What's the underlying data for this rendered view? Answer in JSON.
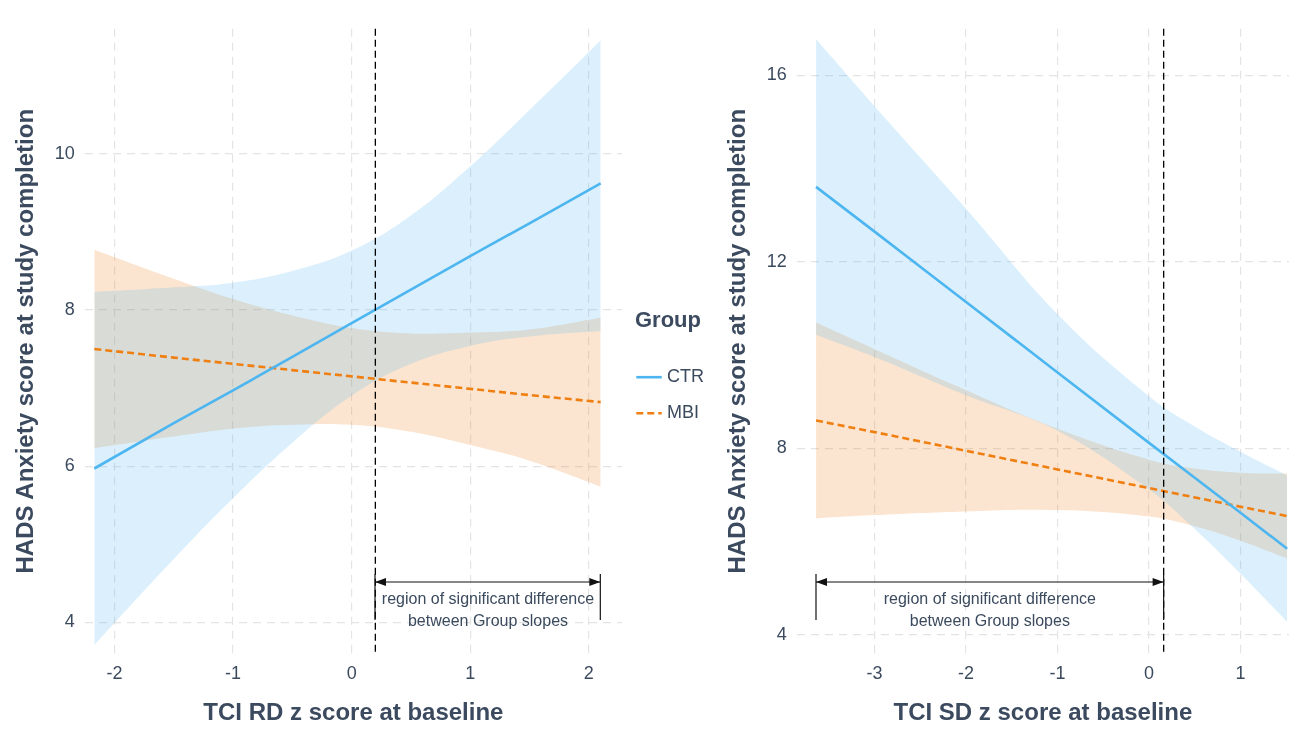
{
  "chart_data": [
    {
      "type": "line",
      "xlabel": "TCI RD z score at baseline",
      "ylabel": "HADS Anxiety score at study completion",
      "legend_title": "Group",
      "legend": "right",
      "grid": true,
      "marker": "none",
      "xlim": [
        -2.25,
        2.28
      ],
      "ylim": [
        3.6,
        11.6
      ],
      "xticks": [
        -2,
        -1,
        0,
        1,
        2
      ],
      "yticks": [
        4,
        6,
        8,
        10
      ],
      "series": [
        {
          "name": "CTR",
          "color": "#4db6f0",
          "line_style": "solid",
          "x": [
            -2.17,
            -1.5,
            -1,
            -0.5,
            0,
            0.5,
            1,
            1.5,
            2.1
          ],
          "values": [
            5.97,
            6.55,
            6.97,
            7.4,
            7.83,
            8.26,
            8.69,
            9.11,
            9.62
          ],
          "lower": [
            3.71,
            4.81,
            5.59,
            6.3,
            6.9,
            7.31,
            7.54,
            7.66,
            7.73
          ],
          "upper": [
            8.23,
            8.29,
            8.35,
            8.5,
            8.76,
            9.21,
            9.84,
            10.56,
            11.45
          ]
        },
        {
          "name": "MBI",
          "color": "#f07f12",
          "line_style": "dashed",
          "x": [
            -2.17,
            -1.5,
            -1,
            -0.5,
            0,
            0.5,
            1,
            1.5,
            2.1
          ],
          "values": [
            7.5,
            7.39,
            7.31,
            7.23,
            7.15,
            7.07,
            6.99,
            6.91,
            6.82
          ],
          "lower": [
            6.23,
            6.38,
            6.48,
            6.53,
            6.53,
            6.44,
            6.27,
            6.07,
            5.74
          ],
          "upper": [
            8.77,
            8.4,
            8.14,
            7.93,
            7.77,
            7.7,
            7.71,
            7.75,
            7.9
          ]
        }
      ],
      "ref_lines": [
        {
          "axis": "x",
          "value": 0.2,
          "color": "#000000",
          "line_style": "dashed"
        }
      ],
      "annotations": [
        "region of significant difference between Group slopes"
      ]
    },
    {
      "type": "line",
      "xlabel": "TCI SD z score at baseline",
      "ylabel": "HADS Anxiety score at study completion",
      "grid": true,
      "marker": "none",
      "xlim": [
        -3.85,
        1.53
      ],
      "ylim": [
        3.6,
        17
      ],
      "xticks": [
        -3,
        -2,
        -1,
        0,
        1
      ],
      "yticks": [
        4,
        8,
        12,
        16
      ],
      "series": [
        {
          "color": "#4db6f0",
          "line_style": "solid",
          "x": [
            -3.64,
            -3,
            -2,
            -1,
            0,
            0.5,
            1,
            1.51
          ],
          "values": [
            13.61,
            12.65,
            11.14,
            9.63,
            8.12,
            7.37,
            6.62,
            5.85
          ],
          "lower": [
            10.44,
            9.96,
            9.14,
            8.38,
            7.12,
            6.27,
            5.31,
            4.28
          ],
          "upper": [
            16.78,
            15.34,
            13.14,
            10.88,
            9.12,
            8.47,
            7.93,
            7.42
          ]
        },
        {
          "color": "#f07f12",
          "line_style": "dashed",
          "x": [
            -3.64,
            -3,
            -2,
            -1,
            0,
            0.5,
            1,
            1.51
          ],
          "values": [
            8.6,
            8.35,
            7.95,
            7.55,
            7.15,
            6.95,
            6.75,
            6.55
          ],
          "lower": [
            6.5,
            6.57,
            6.65,
            6.68,
            6.54,
            6.33,
            6.02,
            5.64
          ],
          "upper": [
            10.7,
            10.13,
            9.25,
            8.42,
            7.76,
            7.57,
            7.48,
            7.46
          ]
        }
      ],
      "ref_lines": [
        {
          "axis": "x",
          "value": 0.16,
          "color": "#000000",
          "line_style": "dashed"
        }
      ],
      "annotations": [
        "region of significant difference between Group slopes"
      ]
    }
  ]
}
